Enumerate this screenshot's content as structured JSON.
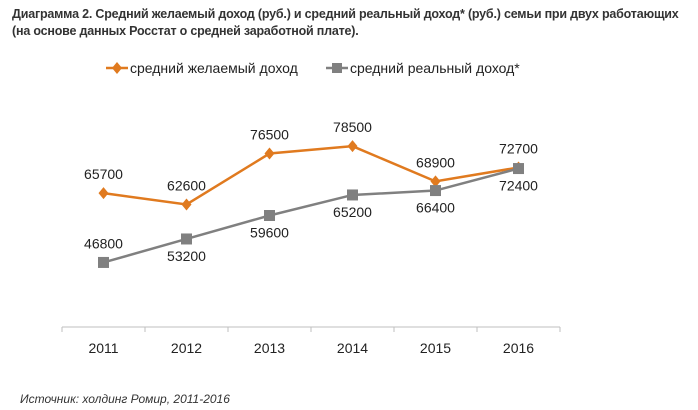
{
  "chart_data": {
    "type": "line",
    "title": "Диаграмма 2. Средний желаемый доход (руб.) и средний реальный доход* (руб.) семьи при двух работающих (на основе данных Росстат о средней заработной плате).",
    "categories": [
      "2011",
      "2012",
      "2013",
      "2014",
      "2015",
      "2016"
    ],
    "series": [
      {
        "name": "средний желаемый доход",
        "color": "#E07A1F",
        "marker": "diamond",
        "values": [
          65700,
          62600,
          76500,
          78500,
          68900,
          72700
        ]
      },
      {
        "name": "средний реальный доход*",
        "color": "#808080",
        "marker": "square",
        "values": [
          46800,
          53200,
          59600,
          65200,
          66400,
          72400
        ]
      }
    ],
    "xlabel": "",
    "ylabel": "",
    "ylim": [
      29200,
      90000
    ],
    "grid": false,
    "legend": "top-center",
    "source": "Источник: холдинг Ромир, 2011-2016"
  }
}
